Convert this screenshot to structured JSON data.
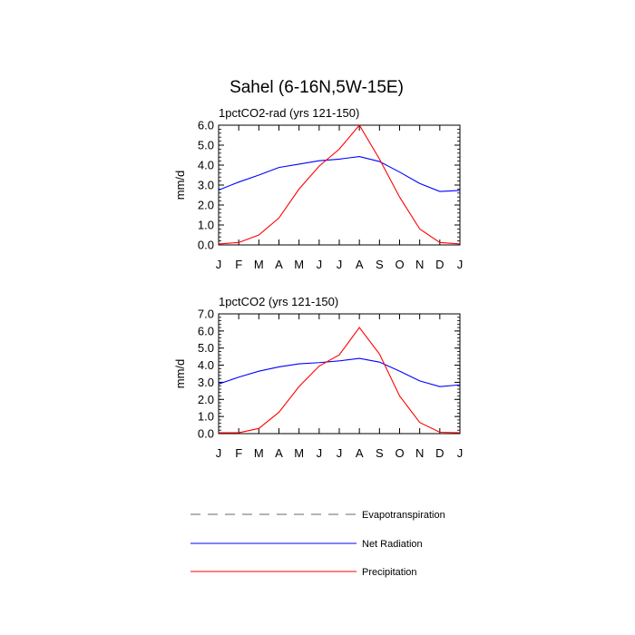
{
  "figure": {
    "title": "Sahel (6-16N,5W-15E)"
  },
  "legend": {
    "placement": "bottom-center",
    "items": [
      {
        "label": "Evapotranspiration",
        "color": "#888888",
        "style": "dashed"
      },
      {
        "label": "Net Radiation",
        "color": "#0000ff",
        "style": "solid"
      },
      {
        "label": "Precipitation",
        "color": "#ff0000",
        "style": "solid"
      }
    ]
  },
  "chart_data": [
    {
      "type": "line",
      "title": "1pctCO2-rad (yrs 121-150)",
      "xlabel": "",
      "ylabel": "mm/d",
      "ylim": [
        0,
        6
      ],
      "yticks": [
        "0.0",
        "1.0",
        "2.0",
        "3.0",
        "4.0",
        "5.0",
        "6.0"
      ],
      "categories": [
        "J",
        "F",
        "M",
        "A",
        "M",
        "J",
        "J",
        "A",
        "S",
        "O",
        "N",
        "D",
        "J"
      ],
      "grid": false,
      "series": [
        {
          "name": "Net Radiation",
          "color": "#0000ff",
          "values": [
            2.75,
            3.15,
            3.5,
            3.88,
            4.05,
            4.22,
            4.3,
            4.43,
            4.18,
            3.65,
            3.08,
            2.68,
            2.73
          ]
        },
        {
          "name": "Precipitation",
          "color": "#ff0000",
          "values": [
            0.05,
            0.12,
            0.5,
            1.35,
            2.8,
            3.95,
            4.8,
            6.0,
            4.3,
            2.4,
            0.8,
            0.12,
            0.05
          ]
        }
      ]
    },
    {
      "type": "line",
      "title": "1pctCO2 (yrs 121-150)",
      "xlabel": "",
      "ylabel": "mm/d",
      "ylim": [
        0,
        7
      ],
      "yticks": [
        "0.0",
        "1.0",
        "2.0",
        "3.0",
        "4.0",
        "5.0",
        "6.0",
        "7.0"
      ],
      "categories": [
        "J",
        "F",
        "M",
        "A",
        "M",
        "J",
        "J",
        "A",
        "S",
        "O",
        "N",
        "D",
        "J"
      ],
      "grid": false,
      "series": [
        {
          "name": "Net Radiation",
          "color": "#0000ff",
          "values": [
            2.9,
            3.3,
            3.65,
            3.9,
            4.08,
            4.15,
            4.25,
            4.4,
            4.18,
            3.65,
            3.08,
            2.75,
            2.85
          ]
        },
        {
          "name": "Precipitation",
          "color": "#ff0000",
          "values": [
            0.05,
            0.05,
            0.3,
            1.25,
            2.75,
            3.95,
            4.6,
            6.2,
            4.65,
            2.2,
            0.65,
            0.08,
            0.05
          ]
        }
      ]
    }
  ]
}
